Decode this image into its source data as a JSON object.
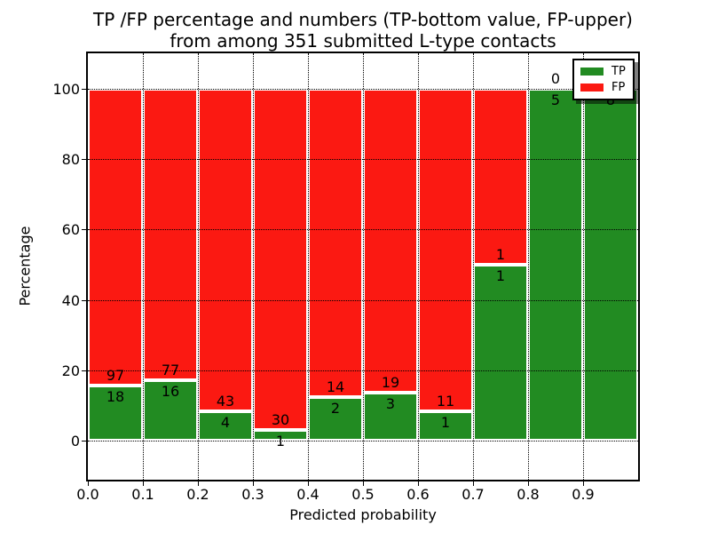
{
  "chart_data": {
    "type": "bar",
    "stacked_percent": true,
    "title_line1": "TP /FP percentage and numbers (TP-bottom value, FP-upper)",
    "title_line2": "from among 351 submitted L-type contacts",
    "xlabel": "Predicted probability",
    "ylabel": "Percentage",
    "total_contacts": 351,
    "x_tick_labels": [
      "0.0",
      "0.1",
      "0.2",
      "0.3",
      "0.4",
      "0.5",
      "0.6",
      "0.7",
      "0.8",
      "0.9"
    ],
    "y_ticks": [
      0,
      20,
      40,
      60,
      80,
      100
    ],
    "y_tick_labels": [
      "0",
      "20",
      "40",
      "60",
      "80",
      "100"
    ],
    "xlim": [
      0.0,
      1.0
    ],
    "ylim": [
      -11,
      110
    ],
    "bin_width": 0.1,
    "categories": [
      "0.0-0.1",
      "0.1-0.2",
      "0.2-0.3",
      "0.3-0.4",
      "0.4-0.5",
      "0.5-0.6",
      "0.6-0.7",
      "0.7-0.8",
      "0.8-0.9",
      "0.9-1.0"
    ],
    "series": [
      {
        "name": "TP",
        "color": "#228b22",
        "values": [
          18,
          16,
          4,
          1,
          2,
          3,
          1,
          1,
          5,
          8
        ]
      },
      {
        "name": "FP",
        "color": "#fb1912",
        "values": [
          97,
          77,
          43,
          30,
          14,
          19,
          11,
          1,
          0,
          0
        ]
      }
    ],
    "grid": true,
    "bar_edge_color": "#ffffff",
    "legend": {
      "position": "upper right",
      "entries": [
        {
          "label": "TP",
          "color": "#228b22"
        },
        {
          "label": "FP",
          "color": "#fb1912"
        }
      ]
    }
  }
}
